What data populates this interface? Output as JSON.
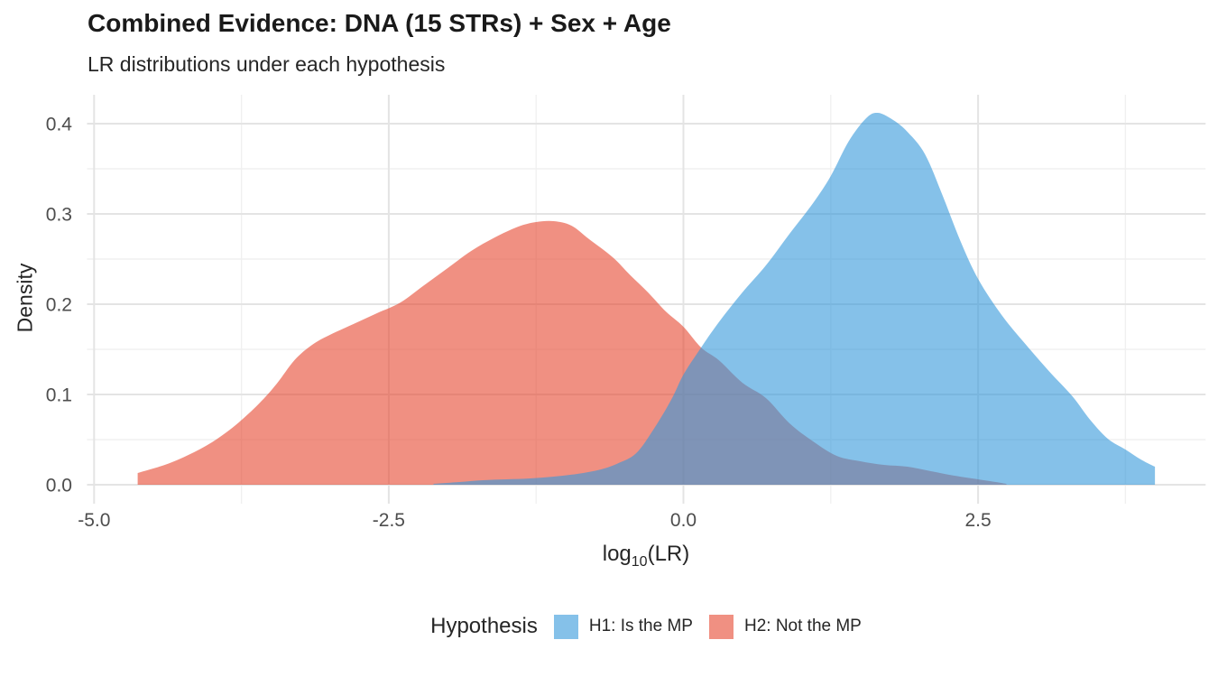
{
  "title": "Combined Evidence: DNA (15 STRs) + Sex + Age",
  "subtitle": "LR distributions under each hypothesis",
  "axes": {
    "y_title": "Density",
    "x_title_prefix": "log",
    "x_title_sub": "10",
    "x_title_suffix": "(LR)",
    "x_ticks": [
      {
        "value": -5.0,
        "label": "-5.0"
      },
      {
        "value": -2.5,
        "label": "-2.5"
      },
      {
        "value": 0.0,
        "label": "0.0"
      },
      {
        "value": 2.5,
        "label": "2.5"
      }
    ],
    "y_ticks": [
      {
        "value": 0.0,
        "label": "0.0"
      },
      {
        "value": 0.1,
        "label": "0.1"
      },
      {
        "value": 0.2,
        "label": "0.2"
      },
      {
        "value": 0.3,
        "label": "0.3"
      },
      {
        "value": 0.4,
        "label": "0.4"
      }
    ]
  },
  "legend": {
    "title": "Hypothesis",
    "items": [
      {
        "label": "H1: Is the MP",
        "color": "#3498DB",
        "opacity": 0.6
      },
      {
        "label": "H2: Not the MP",
        "color": "#E6462E",
        "opacity": 0.6
      }
    ]
  },
  "colors": {
    "grid_major": "#E4E4E4",
    "grid_minor": "#F0F0F0",
    "tick_label": "#4D4D4D",
    "h1_fill": "#3498DB",
    "h2_fill": "#E6462E"
  },
  "chart_data": {
    "type": "area",
    "title": "Combined Evidence: DNA (15 STRs) + Sex + Age",
    "subtitle": "LR distributions under each hypothesis",
    "xlabel": "log10(LR)",
    "ylabel": "Density",
    "xlim": [
      -5.06,
      4.43
    ],
    "ylim": [
      -0.021,
      0.433
    ],
    "grid": true,
    "legend_position": "bottom",
    "x_major_gridlines": [
      -5.0,
      -2.5,
      0.0,
      2.5
    ],
    "x_minor_gridlines": [
      -3.75,
      -1.25,
      1.25,
      3.75
    ],
    "y_major_gridlines": [
      0.0,
      0.1,
      0.2,
      0.3,
      0.4
    ],
    "y_minor_gridlines": [
      0.05,
      0.15,
      0.25,
      0.35
    ],
    "series": [
      {
        "name": "H2: Not the MP",
        "color": "#E6462E",
        "opacity": 0.6,
        "points": [
          [
            -4.63,
            0.013
          ],
          [
            -4.4,
            0.022
          ],
          [
            -4.2,
            0.033
          ],
          [
            -4.0,
            0.047
          ],
          [
            -3.8,
            0.066
          ],
          [
            -3.6,
            0.09
          ],
          [
            -3.45,
            0.112
          ],
          [
            -3.3,
            0.138
          ],
          [
            -3.15,
            0.155
          ],
          [
            -3.0,
            0.166
          ],
          [
            -2.8,
            0.178
          ],
          [
            -2.6,
            0.19
          ],
          [
            -2.4,
            0.202
          ],
          [
            -2.2,
            0.221
          ],
          [
            -2.0,
            0.24
          ],
          [
            -1.8,
            0.259
          ],
          [
            -1.6,
            0.274
          ],
          [
            -1.4,
            0.286
          ],
          [
            -1.25,
            0.291
          ],
          [
            -1.1,
            0.292
          ],
          [
            -0.95,
            0.287
          ],
          [
            -0.8,
            0.272
          ],
          [
            -0.6,
            0.252
          ],
          [
            -0.45,
            0.232
          ],
          [
            -0.3,
            0.213
          ],
          [
            -0.15,
            0.192
          ],
          [
            0.0,
            0.175
          ],
          [
            0.15,
            0.152
          ],
          [
            0.3,
            0.138
          ],
          [
            0.5,
            0.113
          ],
          [
            0.7,
            0.096
          ],
          [
            0.9,
            0.068
          ],
          [
            1.1,
            0.048
          ],
          [
            1.3,
            0.032
          ],
          [
            1.5,
            0.026
          ],
          [
            1.7,
            0.022
          ],
          [
            1.9,
            0.02
          ],
          [
            2.1,
            0.015
          ],
          [
            2.3,
            0.01
          ],
          [
            2.5,
            0.006
          ],
          [
            2.65,
            0.003
          ],
          [
            2.74,
            0.001
          ]
        ]
      },
      {
        "name": "H1: Is the MP",
        "color": "#3498DB",
        "opacity": 0.6,
        "points": [
          [
            -2.12,
            0.001
          ],
          [
            -1.9,
            0.003
          ],
          [
            -1.7,
            0.005
          ],
          [
            -1.5,
            0.006
          ],
          [
            -1.3,
            0.007
          ],
          [
            -1.1,
            0.009
          ],
          [
            -0.9,
            0.012
          ],
          [
            -0.7,
            0.017
          ],
          [
            -0.55,
            0.024
          ],
          [
            -0.4,
            0.035
          ],
          [
            -0.25,
            0.062
          ],
          [
            -0.1,
            0.095
          ],
          [
            0.0,
            0.122
          ],
          [
            0.15,
            0.152
          ],
          [
            0.3,
            0.18
          ],
          [
            0.5,
            0.213
          ],
          [
            0.7,
            0.243
          ],
          [
            0.9,
            0.278
          ],
          [
            1.1,
            0.312
          ],
          [
            1.25,
            0.342
          ],
          [
            1.4,
            0.38
          ],
          [
            1.55,
            0.406
          ],
          [
            1.65,
            0.412
          ],
          [
            1.78,
            0.404
          ],
          [
            1.9,
            0.391
          ],
          [
            2.05,
            0.366
          ],
          [
            2.2,
            0.32
          ],
          [
            2.35,
            0.27
          ],
          [
            2.5,
            0.228
          ],
          [
            2.7,
            0.188
          ],
          [
            2.9,
            0.156
          ],
          [
            3.1,
            0.126
          ],
          [
            3.3,
            0.098
          ],
          [
            3.45,
            0.072
          ],
          [
            3.6,
            0.051
          ],
          [
            3.75,
            0.039
          ],
          [
            3.88,
            0.028
          ],
          [
            4.0,
            0.02
          ]
        ]
      }
    ]
  }
}
